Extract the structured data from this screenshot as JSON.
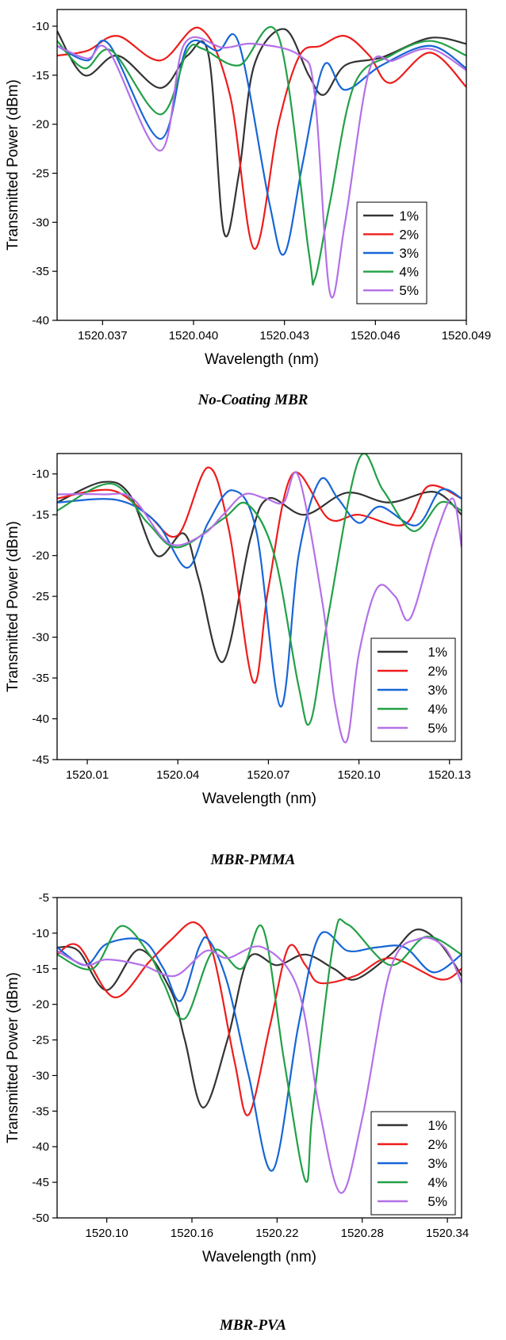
{
  "series_colors": {
    "1%": "#333333",
    "2%": "#ee1c1c",
    "3%": "#1766d6",
    "4%": "#22a046",
    "5%": "#b470e8"
  },
  "chart_data": [
    {
      "type": "line",
      "caption": "No-Coating MBR",
      "xlabel": "Wavelength (nm)",
      "ylabel": "Transmitted Power (dBm)",
      "xlim": [
        1520.0355,
        1520.049
      ],
      "ylim": [
        -40,
        -8.3
      ],
      "xticks": [
        1520.037,
        1520.04,
        1520.043,
        1520.046,
        1520.049
      ],
      "xtick_labels": [
        "1520.037",
        "1520.040",
        "1520.043",
        "1520.046",
        "1520.049"
      ],
      "yticks": [
        -40,
        -35,
        -30,
        -25,
        -20,
        -15,
        -10
      ],
      "ytick_labels": [
        "-40",
        "-35",
        "-30",
        "-25",
        "-20",
        "-15",
        "-10"
      ],
      "legend_position": "bottom-right",
      "series": [
        {
          "name": "1%",
          "x": [
            1520.0355,
            1520.0364,
            1520.0375,
            1520.0389,
            1520.0398,
            1520.0405,
            1520.041,
            1520.0415,
            1520.042,
            1520.043,
            1520.0438,
            1520.0443,
            1520.045,
            1520.0462,
            1520.0478,
            1520.049
          ],
          "y": [
            -10.5,
            -15,
            -13,
            -16.3,
            -13,
            -13,
            -31,
            -25,
            -14,
            -10.3,
            -15,
            -17,
            -14,
            -13.2,
            -11.2,
            -11.8
          ]
        },
        {
          "name": "2%",
          "x": [
            1520.0355,
            1520.0365,
            1520.0375,
            1520.0389,
            1520.0402,
            1520.0412,
            1520.042,
            1520.0428,
            1520.0435,
            1520.0442,
            1520.045,
            1520.0458,
            1520.0465,
            1520.0478,
            1520.049
          ],
          "y": [
            -13,
            -12.5,
            -11,
            -13.5,
            -10.2,
            -17,
            -32.7,
            -20,
            -13,
            -12,
            -11,
            -13,
            -15.8,
            -12.7,
            -16.2
          ]
        },
        {
          "name": "3%",
          "x": [
            1520.0355,
            1520.0365,
            1520.0372,
            1520.0389,
            1520.0398,
            1520.0408,
            1520.0415,
            1520.0425,
            1520.043,
            1520.0436,
            1520.0443,
            1520.045,
            1520.0462,
            1520.0478,
            1520.049
          ],
          "y": [
            -12,
            -13.5,
            -11.8,
            -21.5,
            -12,
            -12.5,
            -11.8,
            -28,
            -33.2,
            -24,
            -14,
            -16.5,
            -14,
            -12,
            -14.3
          ]
        },
        {
          "name": "4%",
          "x": [
            1520.0355,
            1520.0364,
            1520.0373,
            1520.0389,
            1520.0398,
            1520.0403,
            1520.0415,
            1520.0428,
            1520.0438,
            1520.044,
            1520.0445,
            1520.0453,
            1520.0465,
            1520.0478,
            1520.049
          ],
          "y": [
            -11.5,
            -14.3,
            -12.5,
            -19,
            -12.5,
            -12.3,
            -14,
            -11,
            -33,
            -35.8,
            -28,
            -16,
            -13,
            -11.5,
            -13
          ]
        },
        {
          "name": "5%",
          "x": [
            1520.0355,
            1520.0365,
            1520.0372,
            1520.0389,
            1520.0397,
            1520.041,
            1520.042,
            1520.0435,
            1520.044,
            1520.0445,
            1520.045,
            1520.0458,
            1520.0466,
            1520.0478,
            1520.049
          ],
          "y": [
            -12,
            -13.3,
            -12.5,
            -22.7,
            -11.8,
            -12.2,
            -11.8,
            -13,
            -17,
            -37.2,
            -30,
            -14.5,
            -13.5,
            -12.3,
            -14.5
          ]
        }
      ]
    },
    {
      "type": "line",
      "caption": "MBR-PMMA",
      "xlabel": "Wavelength (nm)",
      "ylabel": "Transmitted Power (dBm)",
      "xlim": [
        1520.0,
        1520.134
      ],
      "ylim": [
        -45,
        -7.5
      ],
      "xticks": [
        1520.01,
        1520.04,
        1520.07,
        1520.1,
        1520.13
      ],
      "xtick_labels": [
        "1520.01",
        "1520.04",
        "1520.07",
        "1520.10",
        "1520.13"
      ],
      "yticks": [
        -45,
        -40,
        -35,
        -30,
        -25,
        -20,
        -15,
        -10
      ],
      "ytick_labels": [
        "-45",
        "-40",
        "-35",
        "-30",
        "-25",
        "-20",
        "-15",
        "-10"
      ],
      "legend_position": "bottom-right",
      "series": [
        {
          "name": "1%",
          "x": [
            1520.0,
            1520.015,
            1520.024,
            1520.033,
            1520.042,
            1520.047,
            1520.055,
            1520.064,
            1520.07,
            1520.082,
            1520.096,
            1520.11,
            1520.125,
            1520.134
          ],
          "y": [
            -13.5,
            -11,
            -12.5,
            -20,
            -17.3,
            -23,
            -33,
            -18,
            -13,
            -15,
            -12.3,
            -13.5,
            -12.2,
            -15
          ]
        },
        {
          "name": "2%",
          "x": [
            1520.0,
            1520.018,
            1520.03,
            1520.04,
            1520.05,
            1520.057,
            1520.065,
            1520.07,
            1520.078,
            1520.09,
            1520.1,
            1520.115,
            1520.123,
            1520.134
          ],
          "y": [
            -13,
            -12,
            -15,
            -17.5,
            -9.2,
            -17,
            -35.5,
            -24,
            -10,
            -15.5,
            -15,
            -16.2,
            -11.5,
            -13
          ]
        },
        {
          "name": "3%",
          "x": [
            1520.0,
            1520.02,
            1520.033,
            1520.043,
            1520.05,
            1520.058,
            1520.066,
            1520.074,
            1520.08,
            1520.087,
            1520.093,
            1520.1,
            1520.107,
            1520.119,
            1520.127,
            1520.134
          ],
          "y": [
            -13.5,
            -13.2,
            -16,
            -21.5,
            -16,
            -12,
            -17,
            -38.5,
            -20,
            -10.8,
            -13,
            -16,
            -14,
            -16.3,
            -12,
            -13
          ]
        },
        {
          "name": "4%",
          "x": [
            1520.0,
            1520.018,
            1520.03,
            1520.04,
            1520.055,
            1520.063,
            1520.072,
            1520.08,
            1520.084,
            1520.09,
            1520.1,
            1520.108,
            1520.118,
            1520.127,
            1520.134
          ],
          "y": [
            -14.5,
            -11.2,
            -16,
            -19,
            -15.5,
            -13.7,
            -20,
            -36,
            -40.3,
            -27,
            -8.2,
            -12,
            -17,
            -13.5,
            -14.5
          ]
        },
        {
          "name": "5%",
          "x": [
            1520.0,
            1520.015,
            1520.025,
            1520.037,
            1520.048,
            1520.055,
            1520.062,
            1520.069,
            1520.075,
            1520.08,
            1520.088,
            1520.092,
            1520.096,
            1520.1,
            1520.106,
            1520.112,
            1520.117,
            1520.125,
            1520.131,
            1520.134
          ],
          "y": [
            -12.5,
            -12.5,
            -13,
            -18.5,
            -17.5,
            -15,
            -12.5,
            -13,
            -13.5,
            -10.3,
            -26,
            -38,
            -42.7,
            -32,
            -24,
            -25,
            -27.7,
            -18,
            -13,
            -19
          ]
        }
      ]
    },
    {
      "type": "line",
      "caption": "MBR-PVA",
      "xlabel": "Wavelength (nm)",
      "ylabel": "Transmitted Power (dBm)",
      "xlim": [
        1520.065,
        1520.35
      ],
      "ylim": [
        -50,
        -5
      ],
      "xticks": [
        1520.1,
        1520.16,
        1520.22,
        1520.28,
        1520.34
      ],
      "xtick_labels": [
        "1520.10",
        "1520.16",
        "1520.22",
        "1520.28",
        "1520.34"
      ],
      "yticks": [
        -50,
        -45,
        -40,
        -35,
        -30,
        -25,
        -20,
        -15,
        -10,
        -5
      ],
      "ytick_labels": [
        "-50",
        "-45",
        "-40",
        "-35",
        "-30",
        "-25",
        "-20",
        "-15",
        "-10",
        "-5"
      ],
      "legend_position": "bottom-right",
      "series": [
        {
          "name": "1%",
          "x": [
            1520.065,
            1520.08,
            1520.1,
            1520.123,
            1520.145,
            1520.155,
            1520.168,
            1520.185,
            1520.2,
            1520.22,
            1520.24,
            1520.26,
            1520.275,
            1520.3,
            1520.318,
            1520.335,
            1520.35
          ],
          "y": [
            -12,
            -12.5,
            -18,
            -12.3,
            -18,
            -25,
            -34.5,
            -25,
            -13.5,
            -14.5,
            -13,
            -15,
            -16.5,
            -13,
            -9.5,
            -11.5,
            -16
          ]
        },
        {
          "name": "2%",
          "x": [
            1520.065,
            1520.08,
            1520.105,
            1520.13,
            1520.145,
            1520.162,
            1520.175,
            1520.19,
            1520.2,
            1520.215,
            1520.228,
            1520.24,
            1520.25,
            1520.275,
            1520.3,
            1520.335,
            1520.35
          ],
          "y": [
            -13,
            -11.8,
            -19,
            -14,
            -11,
            -8.5,
            -13,
            -28,
            -35.5,
            -23,
            -12,
            -14.5,
            -17,
            -16,
            -13.5,
            -16.5,
            -15
          ]
        },
        {
          "name": "3%",
          "x": [
            1520.065,
            1520.085,
            1520.1,
            1520.125,
            1520.14,
            1520.152,
            1520.165,
            1520.172,
            1520.185,
            1520.2,
            1520.217,
            1520.235,
            1520.25,
            1520.27,
            1520.29,
            1520.31,
            1520.33,
            1520.35
          ],
          "y": [
            -12,
            -14.5,
            -11.5,
            -11,
            -15,
            -19.5,
            -12,
            -11,
            -17,
            -30,
            -43.3,
            -23,
            -10.3,
            -12.5,
            -12,
            -12,
            -15.5,
            -13
          ]
        },
        {
          "name": "4%",
          "x": [
            1520.065,
            1520.09,
            1520.11,
            1520.13,
            1520.14,
            1520.155,
            1520.175,
            1520.195,
            1520.21,
            1520.225,
            1520.24,
            1520.245,
            1520.26,
            1520.27,
            1520.3,
            1520.325,
            1520.35
          ],
          "y": [
            -13,
            -15,
            -9,
            -13,
            -17,
            -22,
            -12.5,
            -15,
            -9.3,
            -28,
            -44.8,
            -35,
            -11,
            -8.8,
            -14.5,
            -10.5,
            -13
          ]
        },
        {
          "name": "5%",
          "x": [
            1520.065,
            1520.085,
            1520.1,
            1520.125,
            1520.148,
            1520.17,
            1520.185,
            1520.21,
            1520.235,
            1520.25,
            1520.265,
            1520.28,
            1520.3,
            1520.32,
            1520.338,
            1520.35
          ],
          "y": [
            -12.5,
            -14.5,
            -13.7,
            -14.5,
            -16,
            -12.5,
            -13.5,
            -12,
            -18,
            -35,
            -46.5,
            -36,
            -15,
            -10.8,
            -12,
            -17
          ]
        }
      ]
    }
  ]
}
